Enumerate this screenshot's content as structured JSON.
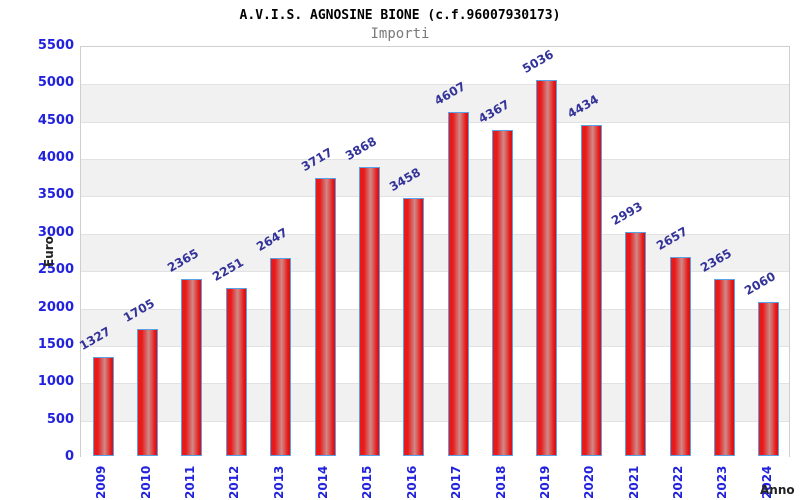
{
  "header": {
    "title": "A.V.I.S. AGNOSINE BIONE (c.f.96007930173)",
    "subtitle": "Importi"
  },
  "chart_data": {
    "type": "bar",
    "title": "A.V.I.S. AGNOSINE BIONE (c.f.96007930173)",
    "subtitle": "Importi",
    "xlabel": "Anno",
    "ylabel": "Euro",
    "categories": [
      "2009",
      "2010",
      "2011",
      "2012",
      "2013",
      "2014",
      "2015",
      "2016",
      "2017",
      "2018",
      "2019",
      "2020",
      "2021",
      "2022",
      "2023",
      "2024"
    ],
    "values": [
      1327,
      1705,
      2365,
      2251,
      2647,
      3717,
      3868,
      3458,
      4607,
      4367,
      5036,
      4434,
      2993,
      2657,
      2365,
      2060
    ],
    "ylim": [
      0,
      5500
    ],
    "ytick_step": 500,
    "ytick_labels": [
      "0",
      "500",
      "1000",
      "1500",
      "2000",
      "2500",
      "3000",
      "3500",
      "4000",
      "4500",
      "5000",
      "5500"
    ],
    "grid": "alternating horizontal bands every 500, light gray gridlines",
    "legend_position": "none",
    "bar_value_labels_rotation_deg": -30,
    "xtick_rotation_deg": -90,
    "colors": {
      "title": "#000000",
      "subtitle": "#7a7a7a",
      "tick_label": "#2222dd",
      "value_label": "#333399",
      "axis_title": "#222222",
      "band": "#f1f1f1",
      "gridline": "#e2e2e2",
      "plot_border": "#cfcfcf",
      "bar_border": "#5aa2e8",
      "bar_red": "#e81a1a",
      "bar_red_deep": "#d61010",
      "bar_highlight": "#cf8a88"
    }
  }
}
